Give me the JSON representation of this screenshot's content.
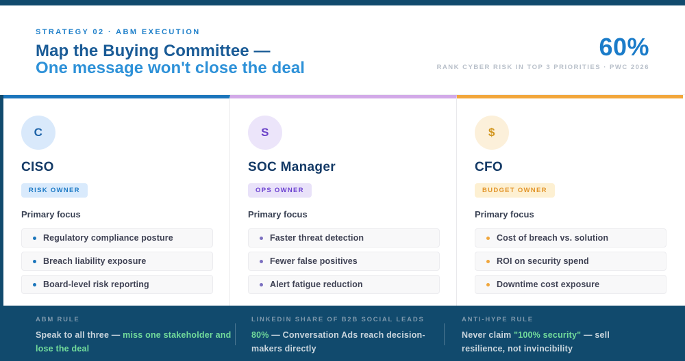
{
  "palette": {
    "navy": "#114a6d",
    "eyebrow": "#1e7fc9",
    "title_1": "#1a5b96",
    "title_2": "#2d91d8",
    "stat": "#1b7cc9",
    "green": "#72db9b"
  },
  "header": {
    "eyebrow": "STRATEGY 02 · ABM EXECUTION",
    "title_line1": "Map the Buying Committee —",
    "title_line2": "One message won't close the deal",
    "stat": {
      "value": "60%",
      "label": "RANK CYBER RISK IN TOP 3 PRIORITIES · PWC 2026"
    }
  },
  "cards": [
    {
      "initial": "C",
      "name": "CISO",
      "badge": "RISK OWNER",
      "focus_label": "Primary focus",
      "items": [
        "Regulatory compliance posture",
        "Breach liability exposure",
        "Board-level risk reporting"
      ],
      "colors": {
        "accent": "#1b75bb",
        "avatar_bg": "#d9e9fb",
        "avatar_fg": "#1d63a8",
        "badge_bg": "#d9eafc",
        "badge_fg": "#1b79c5",
        "bullet": "#1b75bb"
      }
    },
    {
      "initial": "S",
      "name": "SOC Manager",
      "badge": "OPS OWNER",
      "focus_label": "Primary focus",
      "items": [
        "Faster threat detection",
        "Fewer false positives",
        "Alert fatigue reduction"
      ],
      "colors": {
        "accent": "#d2a9e8",
        "avatar_bg": "#ece5fa",
        "avatar_fg": "#6a41c8",
        "badge_bg": "#e9e2f9",
        "badge_fg": "#6a3fd0",
        "bullet": "#7b6fc0"
      }
    },
    {
      "initial": "$",
      "name": "CFO",
      "badge": "BUDGET OWNER",
      "focus_label": "Primary focus",
      "items": [
        "Cost of breach vs. solution",
        "ROI on security spend",
        "Downtime cost exposure"
      ],
      "colors": {
        "accent": "#f2a63b",
        "avatar_bg": "#fcf0da",
        "avatar_fg": "#d2961f",
        "badge_bg": "#fdf0d2",
        "badge_fg": "#e2952b",
        "bullet": "#f0a63c"
      }
    }
  ],
  "footer": {
    "cols": [
      {
        "label": "ABM RULE",
        "pre": "Speak to all three — ",
        "highlight": "miss one stakeholder and lose the deal",
        "post": ""
      },
      {
        "label": "LINKEDIN SHARE OF B2B SOCIAL LEADS",
        "pre": "",
        "highlight": "80%",
        "post": " — Conversation Ads reach decision-makers directly"
      },
      {
        "label": "ANTI-HYPE RULE",
        "pre": "Never claim ",
        "highlight": "\"100% security\"",
        "post": " — sell resilience, not invincibility"
      }
    ]
  }
}
